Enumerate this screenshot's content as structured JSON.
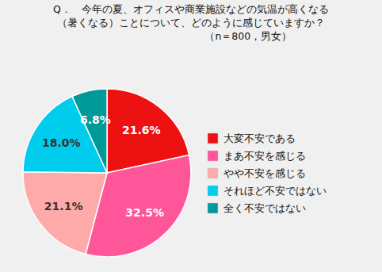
{
  "chart_data": {
    "type": "pie",
    "title": [
      "Q．　今年の夏、オフィスや商業施設などの気温が高くなる",
      "（暑くなる）ことについて、どのように感じていますか？"
    ],
    "subtitle": "（n＝800，男女）",
    "categories": [
      "大変不安である",
      "まあ不安を感じる",
      "やや不安を感じる",
      "それほど不安ではない",
      "全く不安ではない"
    ],
    "values": [
      21.6,
      32.5,
      21.1,
      18.0,
      6.8
    ],
    "value_labels": [
      "21.6%",
      "32.5%",
      "21.1%",
      "18.0%",
      "6.8%"
    ],
    "colors": [
      "#ee1111",
      "#ff5599",
      "#ffaaaa",
      "#00ccee",
      "#009999"
    ],
    "data_labels": true,
    "legend": "right"
  }
}
